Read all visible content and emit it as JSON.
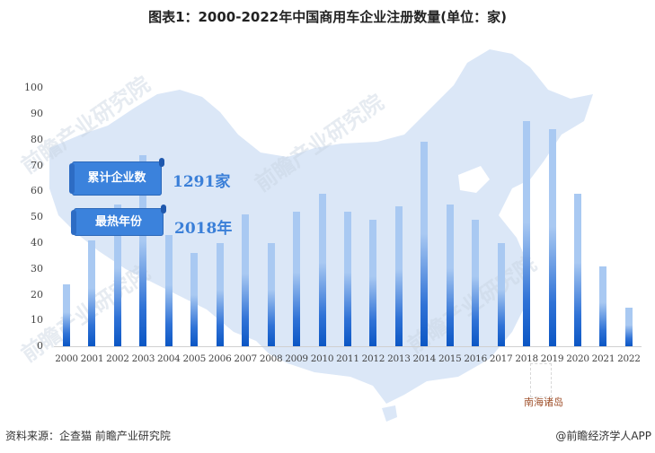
{
  "title": "图表1：2000-2022年中国商用车企业注册数量(单位：家)",
  "kpis": [
    {
      "label": "累计企业数",
      "value": "1291家"
    },
    {
      "label": "最热年份",
      "value": "2018年"
    }
  ],
  "map_annotation": "南海诸岛",
  "watermark": "前瞻产业研究院",
  "footer": {
    "source": "资料来源：企查猫 前瞻产业研究院",
    "credit": "@前瞻经济学人APP"
  },
  "colors": {
    "bar_top": "#a9c9f2",
    "bar_bottom": "#0b56c4",
    "banner": "#3b82dc",
    "kpi_text": "#3a7fd8",
    "map": "#dbe7f7"
  },
  "y_ticks": [
    "100",
    "90",
    "80",
    "70",
    "60",
    "50",
    "40",
    "30",
    "20",
    "10",
    "0"
  ],
  "chart_data": {
    "type": "bar",
    "title": "图表1：2000-2022年中国商用车企业注册数量(单位：家)",
    "xlabel": "",
    "ylabel": "家",
    "ylim": [
      0,
      100
    ],
    "yticks": [
      0,
      10,
      20,
      30,
      40,
      50,
      60,
      70,
      80,
      90,
      100
    ],
    "grid": false,
    "legend": null,
    "categories": [
      "2000",
      "2001",
      "2002",
      "2003",
      "2004",
      "2005",
      "2006",
      "2007",
      "2008",
      "2009",
      "2010",
      "2011",
      "2012",
      "2013",
      "2014",
      "2015",
      "2016",
      "2017",
      "2018",
      "2019",
      "2020",
      "2021",
      "2022"
    ],
    "values": [
      24,
      41,
      55,
      74,
      43,
      36,
      40,
      51,
      40,
      52,
      59,
      52,
      49,
      54,
      79,
      55,
      49,
      40,
      87,
      84,
      59,
      31,
      15
    ],
    "annotations": [
      "累计企业数 1291家",
      "最热年份 2018年"
    ]
  }
}
